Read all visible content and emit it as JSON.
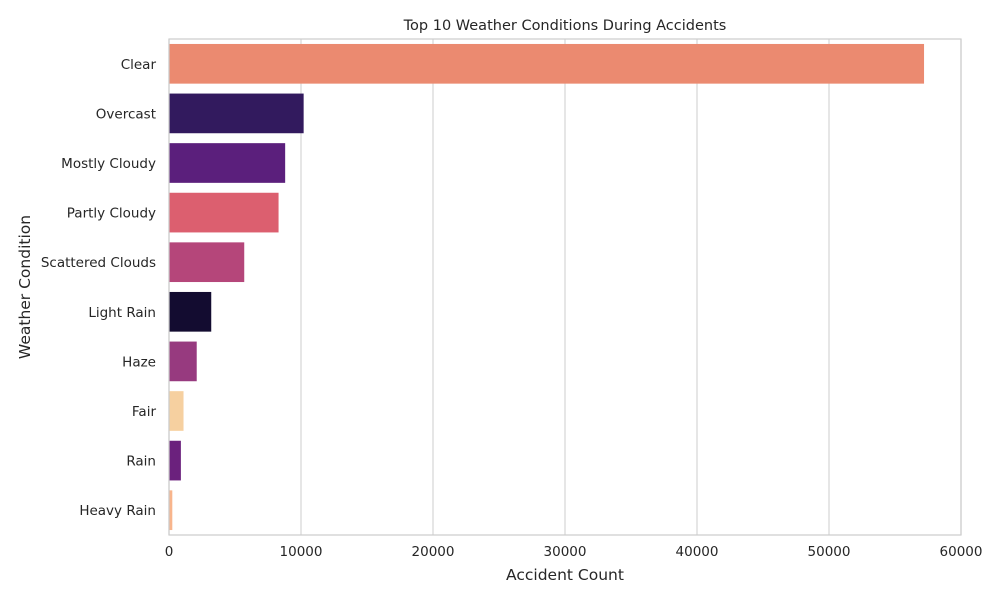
{
  "chart_data": {
    "type": "bar",
    "orientation": "horizontal",
    "title": "Top 10 Weather Conditions During Accidents",
    "xlabel": "Accident Count",
    "ylabel": "Weather Condition",
    "categories": [
      "Clear",
      "Overcast",
      "Mostly Cloudy",
      "Partly Cloudy",
      "Scattered Clouds",
      "Light Rain",
      "Haze",
      "Fair",
      "Rain",
      "Heavy Rain"
    ],
    "values": [
      57200,
      10200,
      8800,
      8300,
      5700,
      3200,
      2100,
      1100,
      900,
      250
    ],
    "colors": [
      "#eb8a70",
      "#321a5e",
      "#5b1f7c",
      "#dc5f6f",
      "#b5467a",
      "#130c30",
      "#973a7f",
      "#f6d0a0",
      "#6b217d",
      "#f8b58c"
    ],
    "xlim": [
      0,
      60000
    ],
    "xticks": [
      0,
      10000,
      20000,
      30000,
      40000,
      50000,
      60000
    ],
    "grid": "vertical",
    "legend": "none"
  }
}
